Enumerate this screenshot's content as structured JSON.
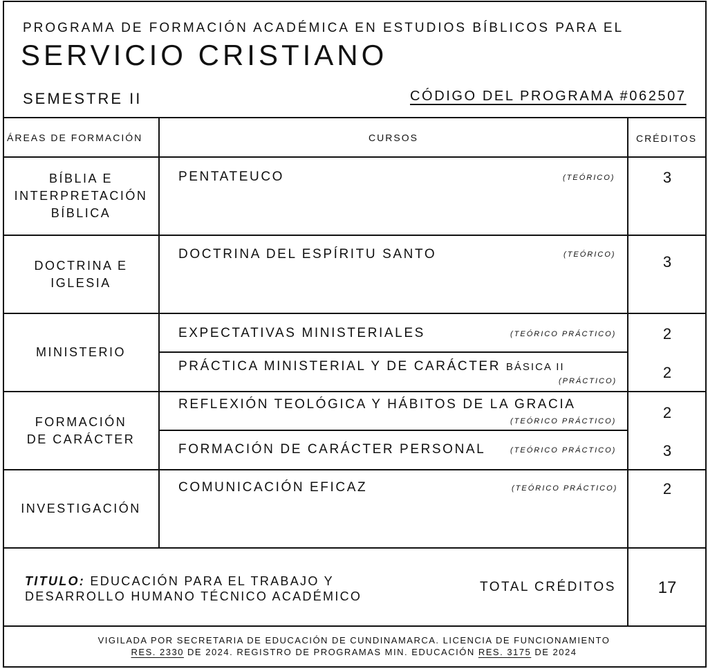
{
  "header": {
    "subtitle": "PROGRAMA DE FORMACIÓN ACADÉMICA EN ESTUDIOS BÍBLICOS PARA EL",
    "title": "SERVICIO CRISTIANO",
    "semester": "SEMESTRE II",
    "program_code": "CÓDIGO DEL PROGRAMA #062507"
  },
  "table": {
    "columns": [
      "ÁREAS DE FORMACIÓN",
      "CURSOS",
      "CRÉDITOS"
    ],
    "areas": [
      "BÍBLIA E INTERPRETACIÓN BÍBLICA",
      "DOCTRINA E IGLESIA",
      "MINISTERIO",
      "FORMACIÓN DE CARÁCTER",
      "INVESTIGACIÓN"
    ],
    "courses": [
      {
        "name": "PENTATEUCO",
        "type": "(TEÓRICO)",
        "credits": "3"
      },
      {
        "name": "DOCTRINA DEL ESPÍRITU SANTO",
        "type": "(TEÓRICO)",
        "credits": "3"
      },
      {
        "name": "EXPECTATIVAS MINISTERIALES",
        "type": "(TEÓRICO PRÁCTICO)",
        "credits": "2"
      },
      {
        "name": "PRÁCTICA MINISTERIAL Y DE CARÁCTER",
        "suffix": "BÁSICA II",
        "type": "(PRÁCTICO)",
        "credits": "2"
      },
      {
        "name": "REFLEXIÓN TEOLÓGICA Y HÁBITOS DE LA GRACIA",
        "type": "(TEÓRICO PRÁCTICO)",
        "credits": "2"
      },
      {
        "name": "FORMACIÓN DE CARÁCTER PERSONAL",
        "type": "(TEÓRICO PRÁCTICO)",
        "credits": "3"
      },
      {
        "name": "COMUNICACIÓN EFICAZ",
        "type": "(TEÓRICO PRÁCTICO)",
        "credits": "2"
      }
    ]
  },
  "summary": {
    "title_label": "TITULO:",
    "title_line1": "EDUCACIÓN PARA EL TRABAJO Y",
    "title_line2": "DESARROLLO HUMANO TÉCNICO ACADÉMICO",
    "total_label": "TOTAL CRÉDITOS",
    "total_value": "17"
  },
  "footer": {
    "line1": "VIGILADA POR SECRETARIA DE EDUCACIÓN DE CUNDINAMARCA. LICENCIA DE FUNCIONAMIENTO",
    "res1": "RES. 2330",
    "mid": "DE 2024. REGISTRO DE PROGRAMAS MIN. EDUCACIÓN",
    "res2": "RES. 3175",
    "end": "DE 2024"
  }
}
